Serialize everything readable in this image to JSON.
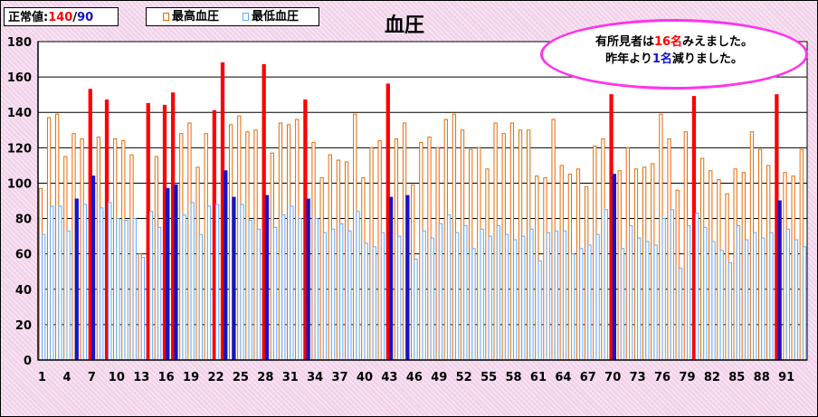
{
  "normal_value": {
    "label": "正常値:",
    "systolic": "140",
    "slash": "/",
    "diastolic": "90"
  },
  "colors": {
    "systolic": "#ffffff",
    "systolic_border": "#e86a00",
    "systolic_highlight": "#ff0000",
    "diastolic": "#ffffff",
    "diastolic_border": "#5fa8ff",
    "diastolic_highlight": "#1414c8"
  },
  "callout": {
    "line1_pre": "有所見者は",
    "line1_num": "16名",
    "line1_post": "みえました。",
    "line2_pre": "昨年より",
    "line2_num": "1名",
    "line2_post": "減りました。"
  },
  "chart_data": {
    "type": "bar",
    "title": "血圧",
    "xlabel": "",
    "ylabel": "",
    "ylim": [
      0,
      180
    ],
    "yticks": [
      0,
      20,
      40,
      60,
      80,
      100,
      120,
      140,
      160,
      180
    ],
    "xtick_labels": [
      "1",
      "4",
      "7",
      "10",
      "13",
      "16",
      "19",
      "22",
      "25",
      "28",
      "31",
      "34",
      "37",
      "40",
      "43",
      "46",
      "49",
      "52",
      "55",
      "58",
      "61",
      "64",
      "67",
      "70",
      "73",
      "76",
      "79",
      "82",
      "85",
      "88",
      "91"
    ],
    "grid": true,
    "legend_position": "top-left",
    "series": [
      {
        "name": "最高血圧",
        "values": [
          97,
          137,
          139,
          115,
          128,
          125,
          153,
          126,
          147,
          125,
          124,
          116,
          60,
          145,
          115,
          144,
          151,
          128,
          134,
          109,
          128,
          141,
          168,
          133,
          138,
          129,
          130,
          167,
          117,
          134,
          133,
          136,
          147,
          123,
          103,
          116,
          113,
          112,
          139,
          103,
          120,
          124,
          156,
          125,
          134,
          99,
          123,
          126,
          120,
          136,
          139,
          130,
          119,
          120,
          108,
          134,
          128,
          134,
          130,
          130,
          104,
          103,
          136,
          110,
          105,
          108,
          98,
          121,
          125,
          150,
          107,
          120,
          108,
          109,
          111,
          139,
          125,
          96,
          129,
          149,
          114,
          107,
          102,
          94,
          108,
          106,
          129,
          119,
          110,
          150,
          106,
          104,
          119
        ]
      },
      {
        "name": "最低血圧",
        "values": [
          71,
          87,
          87,
          73,
          91,
          88,
          104,
          86,
          89,
          80,
          79,
          80,
          58,
          84,
          75,
          97,
          99,
          82,
          89,
          71,
          87,
          88,
          107,
          92,
          88,
          79,
          74,
          93,
          75,
          82,
          87,
          80,
          91,
          80,
          72,
          74,
          77,
          73,
          84,
          66,
          64,
          72,
          92,
          70,
          93,
          57,
          73,
          69,
          77,
          82,
          72,
          76,
          63,
          74,
          70,
          76,
          71,
          68,
          70,
          74,
          56,
          72,
          73,
          73,
          60,
          63,
          65,
          71,
          85,
          105,
          63,
          76,
          69,
          67,
          65,
          80,
          85,
          52,
          76,
          83,
          75,
          67,
          62,
          55,
          76,
          68,
          72,
          69,
          72,
          90,
          74,
          68,
          64
        ]
      }
    ]
  }
}
